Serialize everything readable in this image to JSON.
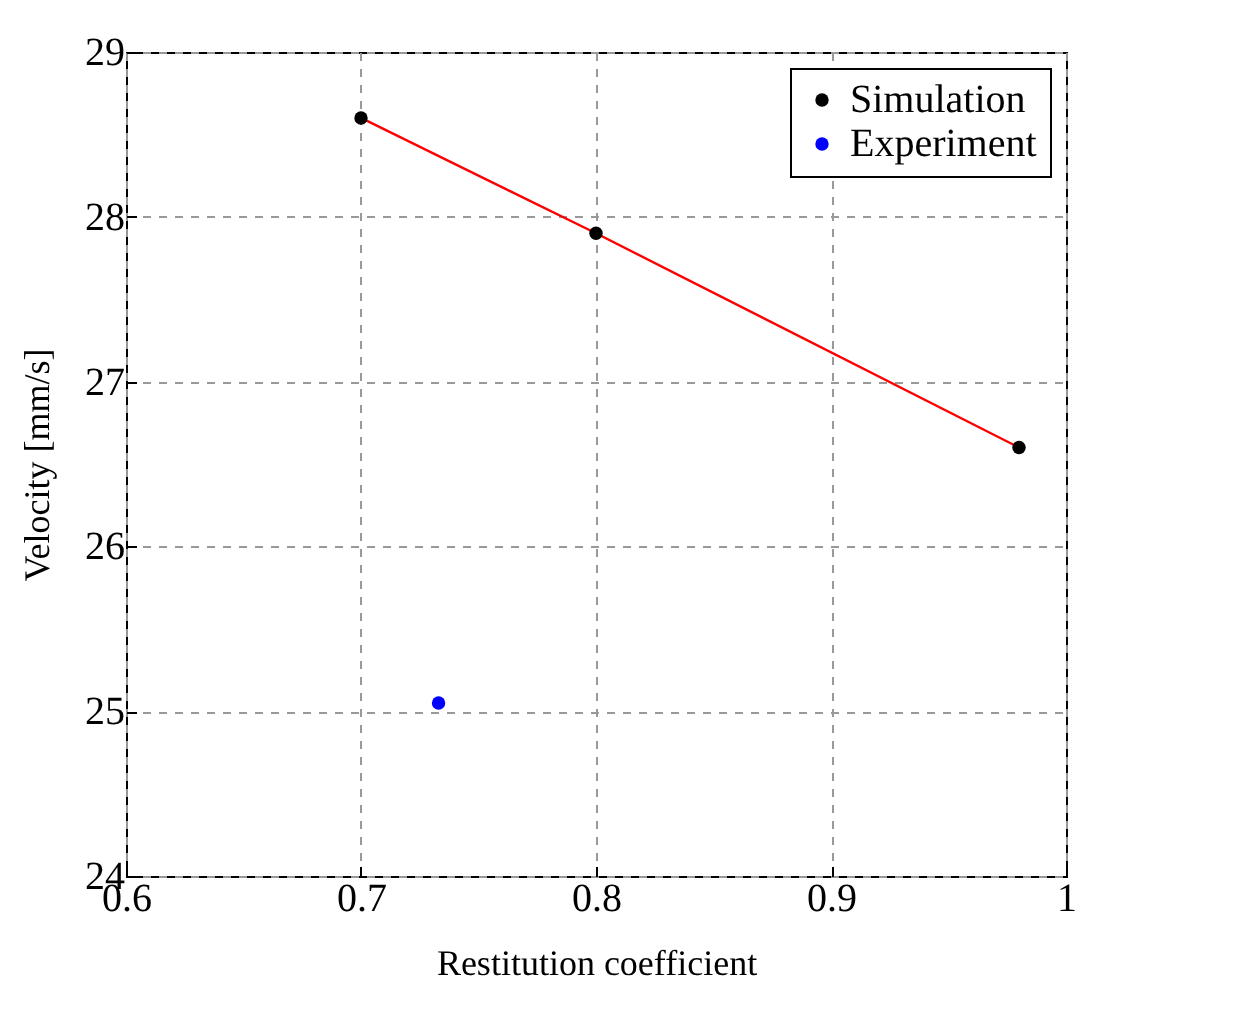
{
  "chart_data": {
    "type": "scatter",
    "xlabel": "Restitution coefficient",
    "ylabel": "Velocity [mm/s]",
    "xlim": [
      0.6,
      1
    ],
    "ylim": [
      24,
      29
    ],
    "xticks": [
      0.6,
      0.7,
      0.8,
      0.9,
      1
    ],
    "yticks": [
      24,
      25,
      26,
      27,
      28,
      29
    ],
    "grid": true,
    "legend": "top right",
    "series": [
      {
        "type": "line",
        "color": "#ff0000",
        "x": [
          0.7,
          0.8,
          0.98
        ],
        "values": [
          28.6,
          27.9,
          26.6
        ]
      },
      {
        "marker": "circle",
        "name": "Simulation",
        "color": "#000000",
        "x": [
          0.7,
          0.8,
          0.98
        ],
        "values": [
          28.6,
          27.9,
          26.6
        ]
      },
      {
        "marker": "circle",
        "name": "Experiment",
        "color": "#0000ff",
        "x": [
          0.733
        ],
        "values": [
          25.05
        ]
      }
    ]
  }
}
